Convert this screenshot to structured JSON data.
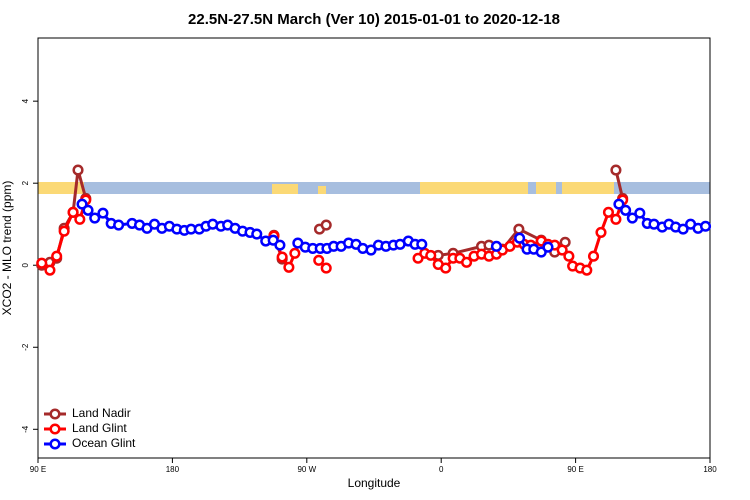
{
  "chart_data": {
    "type": "line",
    "title": "22.5N-27.5N March (Ver 10)   2015-01-01 to 2020-12-18",
    "x_label": "Longitude",
    "y_label": "XCO2 - MLO trend (ppm)",
    "xlim": [
      90,
      540
    ],
    "xticks": [
      {
        "value": 90,
        "label": "90 E"
      },
      180,
      {
        "value": 270,
        "label": "90 W"
      },
      {
        "value": 360,
        "label": "0"
      },
      {
        "value": 450,
        "label": "90 E"
      },
      {
        "value": 540,
        "label": "180"
      }
    ],
    "ylim": [
      -4.7,
      5.54
    ],
    "yticks": [
      -4,
      -2,
      0,
      2,
      4
    ],
    "legend": "bottom-left",
    "series": [
      {
        "name": "Land Nadir",
        "color": "#a52a2a",
        "x": [
          92.5,
          98,
          102.5,
          107.5,
          113.5,
          116.8,
          122,
          185,
          248,
          253.5,
          265,
          278.5,
          283,
          315,
          358,
          368,
          387,
          392,
          401,
          412,
          427,
          436,
          443,
          460,
          477,
          481.5
        ],
        "values": [
          0.0,
          0.07,
          0.17,
          0.9,
          1.29,
          2.32,
          1.63,
          null,
          0.73,
          0.15,
          null,
          0.88,
          0.98,
          null,
          0.24,
          0.29,
          0.46,
          0.49,
          0.39,
          0.88,
          0.61,
          0.32,
          0.56,
          null,
          2.32,
          1.63
        ]
      },
      {
        "name": "Land Glint",
        "color": "#ff0000",
        "x": [
          92.5,
          98,
          102.5,
          107.5,
          113.5,
          118,
          122,
          185,
          248,
          253.5,
          258,
          262,
          270,
          278,
          283,
          315,
          344.5,
          349,
          353,
          358,
          363,
          368,
          372.5,
          377,
          382,
          387,
          392,
          397,
          401,
          406,
          411,
          415.5,
          420,
          427,
          431.5,
          436,
          441,
          445.5,
          448,
          453,
          457.5,
          462,
          467,
          472,
          477,
          481.5
        ],
        "values": [
          0.05,
          -0.12,
          0.22,
          0.83,
          1.29,
          1.12,
          1.59,
          null,
          0.71,
          0.2,
          -0.05,
          0.29,
          null,
          0.12,
          -0.07,
          null,
          0.17,
          0.29,
          0.24,
          0.02,
          -0.07,
          0.17,
          0.17,
          0.07,
          0.22,
          0.27,
          0.22,
          0.27,
          0.37,
          0.46,
          0.56,
          0.51,
          0.49,
          0.59,
          0.51,
          0.49,
          0.37,
          0.22,
          -0.02,
          -0.07,
          -0.12,
          0.22,
          0.8,
          1.29,
          1.12,
          1.59
        ]
      },
      {
        "name": "Ocean Glint",
        "color": "#0000ff",
        "x": [
          119.5,
          123.5,
          128,
          133.5,
          139,
          144,
          153,
          158,
          163,
          168,
          173,
          178,
          183,
          188,
          192.5,
          198,
          202.5,
          207,
          212.5,
          217,
          222,
          227,
          232,
          236.5,
          242.5,
          247.5,
          252,
          258,
          264,
          269,
          274,
          279,
          283.5,
          288,
          293,
          298,
          303,
          307.5,
          313,
          318,
          323,
          328,
          332.5,
          338,
          342.5,
          347,
          370,
          397,
          405,
          412.5,
          417.5,
          422,
          427,
          431.5,
          455,
          479,
          483.5,
          488,
          493,
          498,
          502.5,
          508,
          512.5,
          517,
          522,
          527,
          532,
          537
        ],
        "values": [
          1.49,
          1.34,
          1.15,
          1.27,
          1.02,
          0.98,
          1.02,
          0.98,
          0.9,
          1.0,
          0.9,
          0.95,
          0.88,
          0.85,
          0.88,
          0.88,
          0.95,
          1.0,
          0.95,
          0.98,
          0.9,
          0.83,
          0.8,
          0.76,
          0.59,
          0.61,
          0.49,
          null,
          0.54,
          0.44,
          0.41,
          0.41,
          0.41,
          0.46,
          0.46,
          0.54,
          0.51,
          0.41,
          0.37,
          0.49,
          0.46,
          0.49,
          0.51,
          0.59,
          0.51,
          0.51,
          null,
          0.46,
          null,
          0.66,
          0.39,
          0.39,
          0.32,
          0.44,
          null,
          1.49,
          1.34,
          1.15,
          1.27,
          1.02,
          1.0,
          0.93,
          1.0,
          0.93,
          0.88,
          1.0,
          0.9,
          0.95
        ]
      }
    ]
  }
}
